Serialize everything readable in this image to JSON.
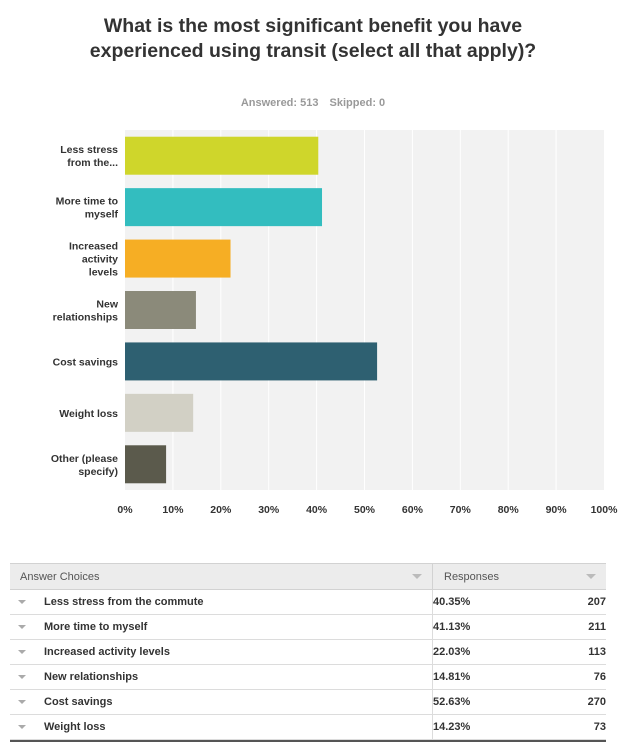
{
  "title": "What is the most significant benefit you have experienced using transit (select all that apply)?",
  "answered_label": "Answered: 513",
  "skipped_label": "Skipped: 0",
  "chart_data": {
    "type": "bar",
    "orientation": "horizontal",
    "categories": [
      "Less stress from the...",
      "More time to myself",
      "Increased activity levels",
      "New relationships",
      "Cost savings",
      "Weight loss",
      "Other (please specify)"
    ],
    "values": [
      40.35,
      41.13,
      22.03,
      14.81,
      52.63,
      14.23,
      8.58
    ],
    "colors": [
      "#cfd62b",
      "#33bdbf",
      "#f6ae24",
      "#8b8a7a",
      "#2e6071",
      "#d2d0c5",
      "#5b5a4c"
    ],
    "xlim": [
      0,
      100
    ],
    "ticks": [
      "0%",
      "10%",
      "20%",
      "30%",
      "40%",
      "50%",
      "60%",
      "70%",
      "80%",
      "90%",
      "100%"
    ],
    "grid": true,
    "plot_background": "#f2f2f2"
  },
  "table": {
    "headers": [
      "Answer Choices",
      "Responses"
    ],
    "rows": [
      {
        "choice": "Less stress from the commute",
        "percent": "40.35%",
        "count": "207"
      },
      {
        "choice": "More time to myself",
        "percent": "41.13%",
        "count": "211"
      },
      {
        "choice": "Increased activity levels",
        "percent": "22.03%",
        "count": "113"
      },
      {
        "choice": "New relationships",
        "percent": "14.81%",
        "count": "76"
      },
      {
        "choice": "Cost savings",
        "percent": "52.63%",
        "count": "270"
      },
      {
        "choice": "Weight loss",
        "percent": "14.23%",
        "count": "73"
      }
    ]
  }
}
